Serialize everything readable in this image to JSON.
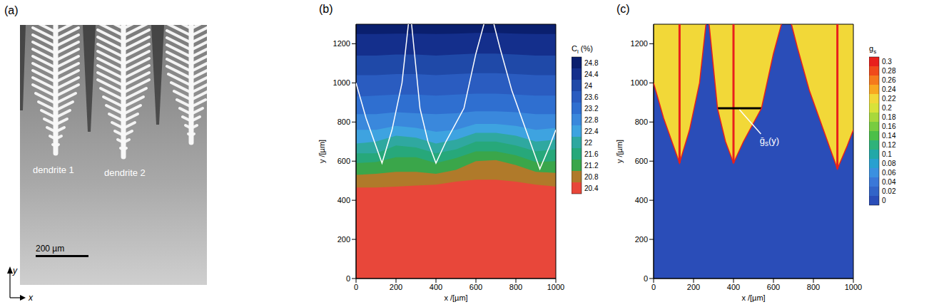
{
  "panel_a": {
    "letter": "(a)",
    "labels": [
      "dendrite 1",
      "dendrite 2"
    ],
    "scale_bar": {
      "label": "200 µm",
      "length": 200
    },
    "axes": {
      "x": "x",
      "y": "y"
    }
  },
  "chart_data": [
    {
      "type": "contour",
      "letter": "(b)",
      "x_label": "x /[µm]",
      "y_label": "y /[µm]",
      "xlim": [
        0,
        1000
      ],
      "ylim": [
        0,
        1300
      ],
      "xticks": [
        0,
        200,
        400,
        600,
        800,
        1000
      ],
      "yticks": [
        0,
        200,
        400,
        600,
        800,
        1000,
        1200
      ],
      "colorbar": {
        "title": {
          "base": "C",
          "sub": "l",
          "rest": " (%)"
        },
        "levels": [
          24.8,
          24.4,
          24,
          23.6,
          23.2,
          22.8,
          22.4,
          22,
          21.6,
          21.2,
          20.8,
          20.4
        ],
        "colors": [
          "#0a1f6e",
          "#142f8c",
          "#1f49a8",
          "#2a5cc0",
          "#2f6fd0",
          "#3a88dc",
          "#3ea3e0",
          "#2fa8a0",
          "#27a87a",
          "#3aa64a",
          "#b07a2a",
          "#e8473a"
        ]
      },
      "x": [
        0,
        100,
        200,
        300,
        400,
        500,
        600,
        700,
        800,
        900,
        1000
      ],
      "bands": [
        {
          "level": 20.4,
          "upper": [
            465,
            465,
            470,
            475,
            480,
            495,
            505,
            505,
            495,
            480,
            470
          ]
        },
        {
          "level": 20.8,
          "upper": [
            530,
            535,
            545,
            545,
            535,
            555,
            600,
            605,
            580,
            545,
            540
          ]
        },
        {
          "level": 21.2,
          "upper": [
            590,
            595,
            620,
            620,
            590,
            615,
            650,
            650,
            630,
            595,
            600
          ]
        },
        {
          "level": 21.6,
          "upper": [
            640,
            640,
            680,
            670,
            640,
            660,
            700,
            700,
            680,
            650,
            660
          ]
        },
        {
          "level": 22,
          "upper": [
            690,
            700,
            730,
            720,
            690,
            710,
            745,
            745,
            730,
            700,
            710
          ]
        },
        {
          "level": 22.4,
          "upper": [
            760,
            760,
            780,
            770,
            750,
            760,
            790,
            790,
            780,
            760,
            770
          ]
        },
        {
          "level": 22.8,
          "upper": [
            840,
            840,
            850,
            845,
            840,
            845,
            855,
            855,
            850,
            840,
            840
          ]
        },
        {
          "level": 23.2,
          "upper": [
            930,
            935,
            940,
            940,
            935,
            940,
            945,
            945,
            940,
            935,
            935
          ]
        },
        {
          "level": 23.6,
          "upper": [
            1040,
            1040,
            1045,
            1045,
            1040,
            1045,
            1050,
            1050,
            1045,
            1040,
            1040
          ]
        },
        {
          "level": 24,
          "upper": [
            1140,
            1140,
            1145,
            1145,
            1140,
            1145,
            1150,
            1150,
            1145,
            1140,
            1140
          ]
        },
        {
          "level": 24.4,
          "upper": [
            1250,
            1250,
            1252,
            1252,
            1250,
            1252,
            1255,
            1255,
            1252,
            1250,
            1250
          ]
        }
      ],
      "interface": {
        "color": "#ffffff",
        "x": [
          0,
          50,
          130,
          180,
          230,
          262,
          278,
          320,
          360,
          400,
          450,
          540,
          600,
          640,
          690,
          720,
          780,
          850,
          920,
          970,
          1000
        ],
        "y": [
          1000,
          820,
          590,
          760,
          1000,
          1300,
          1300,
          870,
          700,
          590,
          700,
          870,
          1150,
          1300,
          1300,
          1180,
          960,
          760,
          560,
          680,
          760
        ]
      }
    },
    {
      "type": "contour",
      "letter": "(c)",
      "x_label": "x /[µm]",
      "y_label": "y /[µm]",
      "xlim": [
        0,
        1000
      ],
      "ylim": [
        0,
        1300
      ],
      "xticks": [
        0,
        200,
        400,
        600,
        800,
        1000
      ],
      "yticks": [
        0,
        200,
        400,
        600,
        800,
        1000,
        1200
      ],
      "colorbar": {
        "title": {
          "base": "g",
          "sub": "s"
        },
        "levels": [
          0.3,
          0.28,
          0.26,
          0.24,
          0.22,
          0.2,
          0.18,
          0.16,
          0.14,
          0.12,
          0.1,
          0.08,
          0.06,
          0.04,
          0.02,
          0
        ],
        "colors": [
          "#e8201c",
          "#f04a1a",
          "#f57a1c",
          "#f8a820",
          "#f2d838",
          "#d8e23a",
          "#a8d83c",
          "#78cc40",
          "#4cbf48",
          "#2eb27a",
          "#22a8a8",
          "#28a0d0",
          "#3a90e0",
          "#3a78d8",
          "#3264c8",
          "#2a4db8"
        ]
      },
      "liquid": 0,
      "solid": {
        "value": 0.22,
        "edge_value": 0.3,
        "x": [
          0,
          50,
          130,
          180,
          230,
          262,
          278,
          320,
          360,
          400,
          450,
          540,
          600,
          640,
          690,
          720,
          780,
          850,
          920,
          970,
          1000
        ],
        "y": [
          1000,
          820,
          590,
          760,
          1000,
          1300,
          1300,
          870,
          700,
          590,
          700,
          870,
          1150,
          1300,
          1300,
          1180,
          960,
          760,
          560,
          680,
          760
        ]
      },
      "trunks": {
        "value": 0.3,
        "x": [
          130,
          400,
          920
        ],
        "y_tip": [
          590,
          590,
          560
        ]
      },
      "annotation": {
        "text": {
          "base": "ḡ",
          "sub": "s",
          "rest": "(y)"
        },
        "color": "#000000",
        "x": [
          320,
          540
        ],
        "y": 870
      }
    }
  ]
}
